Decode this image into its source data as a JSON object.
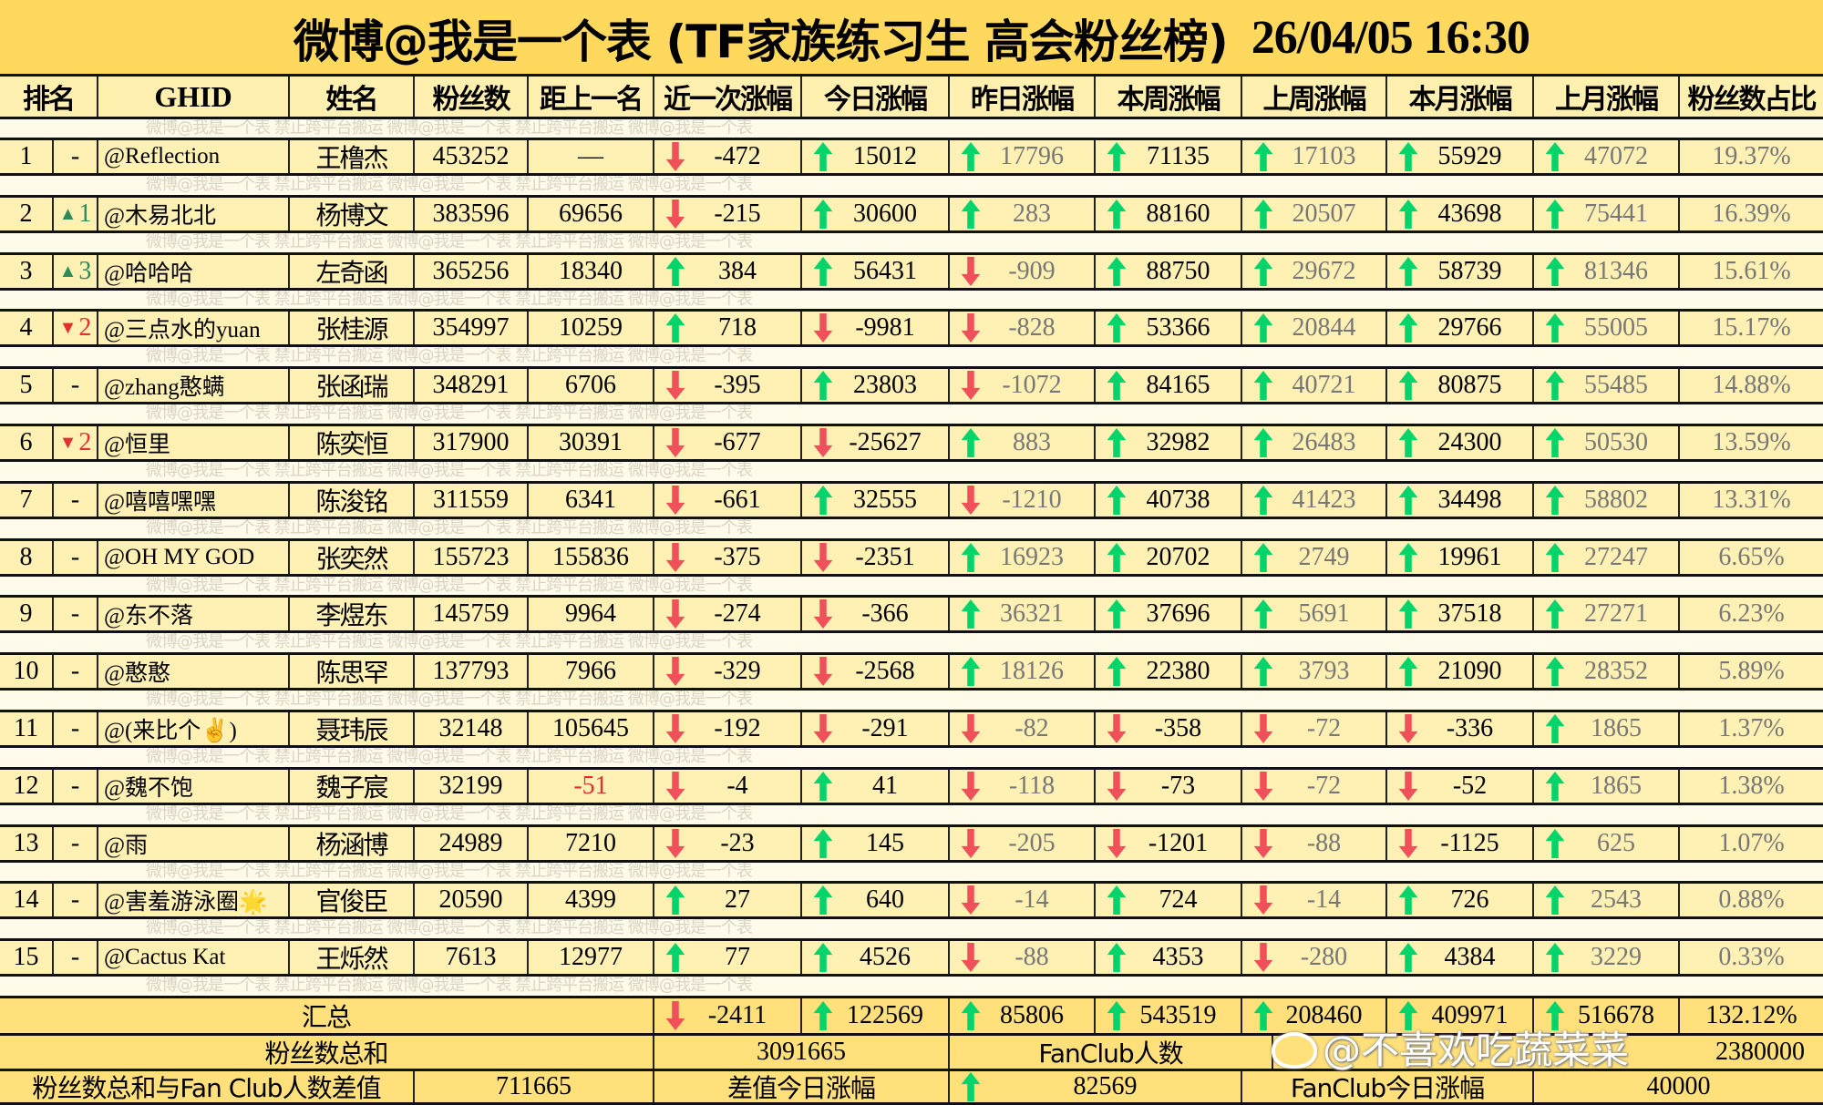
{
  "title": {
    "text": "微博@我是一个表 (TF家族练习生 高会粉丝榜)",
    "timestamp": "26/04/05 16:30"
  },
  "watermark_text": "微博@我是一个表    禁止跨平台搬运    微博@我是一个表    禁止跨平台搬运    微博@我是一个表",
  "corner_watermark": "@不喜欢吃蔬菜菜",
  "colors": {
    "title_bg": "#ffd95e",
    "row_bg": "#fff0b3",
    "summary_bg": "#ffe07a",
    "up": "#00d46a",
    "down": "#f0505a",
    "rank_up": "#2e8b57",
    "rank_down": "#e03030"
  },
  "headers": [
    "排名",
    "GHID",
    "姓名",
    "粉丝数",
    "距上一名",
    "近一次涨幅",
    "今日涨幅",
    "昨日涨幅",
    "本周涨幅",
    "上周涨幅",
    "本月涨幅",
    "上月涨幅",
    "粉丝数占比"
  ],
  "rows": [
    {
      "rank": "1",
      "move": "-",
      "move_dir": "",
      "ghid": "@Reflection",
      "name": "王橹杰",
      "fans": "453252",
      "gap": "—",
      "vals": [
        "-472",
        "15012",
        "17796",
        "71135",
        "17103",
        "55929",
        "47072"
      ],
      "pct": "19.37%"
    },
    {
      "rank": "2",
      "move": "1",
      "move_dir": "up",
      "ghid": "@木易北北",
      "name": "杨博文",
      "fans": "383596",
      "gap": "69656",
      "vals": [
        "-215",
        "30600",
        "283",
        "88160",
        "20507",
        "43698",
        "75441"
      ],
      "pct": "16.39%"
    },
    {
      "rank": "3",
      "move": "3",
      "move_dir": "up",
      "ghid": "@哈哈哈",
      "name": "左奇函",
      "fans": "365256",
      "gap": "18340",
      "vals": [
        "384",
        "56431",
        "-909",
        "88750",
        "29672",
        "58739",
        "81346"
      ],
      "pct": "15.61%"
    },
    {
      "rank": "4",
      "move": "2",
      "move_dir": "down",
      "ghid": "@三点水的yuan",
      "name": "张桂源",
      "fans": "354997",
      "gap": "10259",
      "vals": [
        "718",
        "-9981",
        "-828",
        "53366",
        "20844",
        "29766",
        "55005"
      ],
      "pct": "15.17%"
    },
    {
      "rank": "5",
      "move": "-",
      "move_dir": "",
      "ghid": "@zhang憨螨",
      "name": "张函瑞",
      "fans": "348291",
      "gap": "6706",
      "vals": [
        "-395",
        "23803",
        "-1072",
        "84165",
        "40721",
        "80875",
        "55485"
      ],
      "pct": "14.88%"
    },
    {
      "rank": "6",
      "move": "2",
      "move_dir": "down",
      "ghid": "@恒里",
      "name": "陈奕恒",
      "fans": "317900",
      "gap": "30391",
      "vals": [
        "-677",
        "-25627",
        "883",
        "32982",
        "26483",
        "24300",
        "50530"
      ],
      "pct": "13.59%"
    },
    {
      "rank": "7",
      "move": "-",
      "move_dir": "",
      "ghid": "@嘻嘻嘿嘿",
      "name": "陈浚铭",
      "fans": "311559",
      "gap": "6341",
      "vals": [
        "-661",
        "32555",
        "-1210",
        "40738",
        "41423",
        "34498",
        "58802"
      ],
      "pct": "13.31%"
    },
    {
      "rank": "8",
      "move": "-",
      "move_dir": "",
      "ghid": "@OH MY GOD",
      "name": "张奕然",
      "fans": "155723",
      "gap": "155836",
      "vals": [
        "-375",
        "-2351",
        "16923",
        "20702",
        "2749",
        "19961",
        "27247"
      ],
      "pct": "6.65%"
    },
    {
      "rank": "9",
      "move": "-",
      "move_dir": "",
      "ghid": "@东不落",
      "name": "李煜东",
      "fans": "145759",
      "gap": "9964",
      "vals": [
        "-274",
        "-366",
        "36321",
        "37696",
        "5691",
        "37518",
        "27271"
      ],
      "pct": "6.23%"
    },
    {
      "rank": "10",
      "move": "-",
      "move_dir": "",
      "ghid": "@憨憨",
      "name": "陈思罕",
      "fans": "137793",
      "gap": "7966",
      "vals": [
        "-329",
        "-2568",
        "18126",
        "22380",
        "3793",
        "21090",
        "28352"
      ],
      "pct": "5.89%"
    },
    {
      "rank": "11",
      "move": "-",
      "move_dir": "",
      "ghid": "@(来比个✌)",
      "name": "聂玮辰",
      "fans": "32148",
      "gap": "105645",
      "vals": [
        "-192",
        "-291",
        "-82",
        "-358",
        "-72",
        "-336",
        "1865"
      ],
      "pct": "1.37%"
    },
    {
      "rank": "12",
      "move": "-",
      "move_dir": "",
      "ghid": "@魏不饱",
      "name": "魏子宸",
      "fans": "32199",
      "gap": "-51",
      "gap_negative": true,
      "vals": [
        "-4",
        "41",
        "-118",
        "-73",
        "-72",
        "-52",
        "1865"
      ],
      "pct": "1.38%"
    },
    {
      "rank": "13",
      "move": "-",
      "move_dir": "",
      "ghid": "@雨",
      "name": "杨涵博",
      "fans": "24989",
      "gap": "7210",
      "vals": [
        "-23",
        "145",
        "-205",
        "-1201",
        "-88",
        "-1125",
        "625"
      ],
      "pct": "1.07%"
    },
    {
      "rank": "14",
      "move": "-",
      "move_dir": "",
      "ghid": "@害羞游泳圈🌟",
      "name": "官俊臣",
      "fans": "20590",
      "gap": "4399",
      "vals": [
        "27",
        "640",
        "-14",
        "724",
        "-14",
        "726",
        "2543"
      ],
      "pct": "0.88%"
    },
    {
      "rank": "15",
      "move": "-",
      "move_dir": "",
      "ghid": "@Cactus Kat",
      "name": "王烁然",
      "fans": "7613",
      "gap": "12977",
      "vals": [
        "77",
        "4526",
        "-88",
        "4353",
        "-280",
        "4384",
        "3229"
      ],
      "pct": "0.33%"
    }
  ],
  "summary": {
    "label": "汇总",
    "vals": [
      "-2411",
      "122569",
      "85806",
      "543519",
      "208460",
      "409971",
      "516678"
    ],
    "pct": "132.12%",
    "total_fans_label": "粉丝数总和",
    "total_fans": "3091665",
    "fanclub_label": "FanClub人数",
    "fanclub": "2380000",
    "diff_label": "粉丝数总和与Fan Club人数差值",
    "diff": "711665",
    "diff_today_label": "差值今日涨幅",
    "diff_today": "82569",
    "fanclub_today_label": "FanClub今日涨幅",
    "fanclub_today": "40000"
  }
}
